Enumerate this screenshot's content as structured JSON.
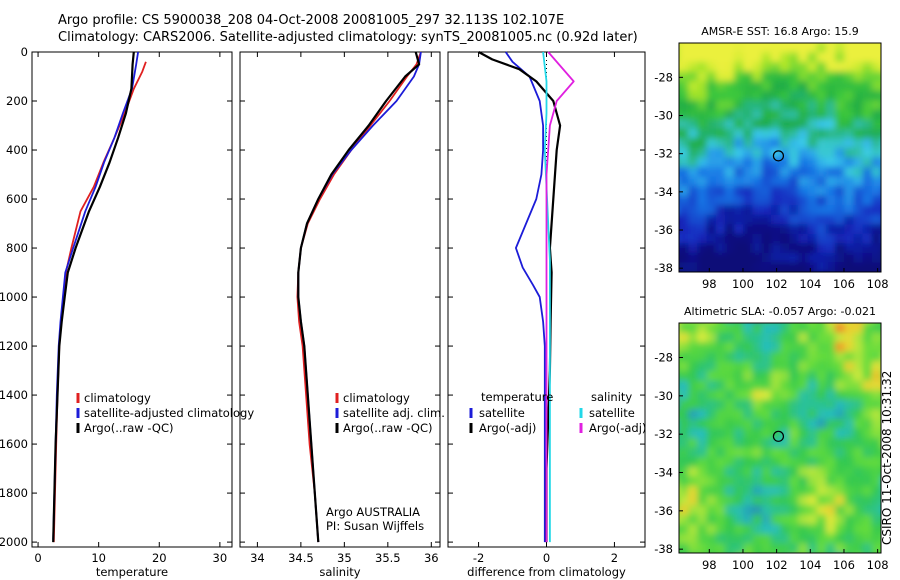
{
  "header": {
    "line1": "Argo profile: CS 5900038_208 04-Oct-2008 20081005_297 32.113S 102.107E",
    "line2": "Climatology: CARS2006. Satellite-adjusted climatology: synTS_20081005.nc (0.92d later)"
  },
  "side_stamp": "CSIRO 11-Oct-2008 10:31:32",
  "colors": {
    "climatology": "#e02020",
    "satellite": "#1c1cd8",
    "argo": "#000000",
    "satellite_salinity": "#22d8e8",
    "argo_adj_salinity": "#e020e0"
  },
  "chart_data": [
    {
      "type": "line",
      "id": "temperature",
      "xlabel": "temperature",
      "ylabel": "",
      "xlim": [
        -1,
        32
      ],
      "ylim": [
        2020,
        0
      ],
      "xticks": [
        0,
        10,
        20,
        30
      ],
      "yticks": [
        0,
        200,
        400,
        600,
        800,
        1000,
        1200,
        1400,
        1600,
        1800,
        2000
      ],
      "legend": [
        "climatology",
        "satellite-adjusted climatology",
        "Argo(..raw -QC)"
      ],
      "series": [
        {
          "name": "climatology",
          "color_key": "climatology",
          "x": [
            17.8,
            17.2,
            15.8,
            14.3,
            12.6,
            10.8,
            9.2,
            7.0,
            5.5,
            4.6,
            4.2,
            3.8,
            3.5,
            3.2,
            3.0,
            2.8,
            2.6
          ],
          "y": [
            40,
            80,
            150,
            250,
            350,
            450,
            550,
            650,
            800,
            900,
            1000,
            1100,
            1200,
            1400,
            1600,
            1800,
            2000
          ]
        },
        {
          "name": "satellite-adjusted climatology",
          "color_key": "satellite",
          "x": [
            16.5,
            16.2,
            15.5,
            14.0,
            12.6,
            10.9,
            9.5,
            7.8,
            5.8,
            4.5,
            4.1,
            3.7,
            3.4,
            3.1,
            2.9,
            2.7,
            2.5
          ],
          "y": [
            0,
            50,
            150,
            250,
            350,
            450,
            550,
            650,
            800,
            900,
            1000,
            1100,
            1200,
            1400,
            1600,
            1800,
            1990
          ]
        },
        {
          "name": "Argo(..raw -QC)",
          "color_key": "argo",
          "x": [
            15.8,
            15.6,
            15.4,
            14.5,
            13.2,
            11.8,
            10.2,
            8.4,
            6.2,
            4.9,
            4.4,
            3.9,
            3.5,
            3.2,
            2.9,
            2.7,
            2.5
          ],
          "y": [
            0,
            50,
            150,
            250,
            350,
            450,
            550,
            650,
            800,
            900,
            1000,
            1100,
            1200,
            1400,
            1600,
            1800,
            2000
          ]
        }
      ]
    },
    {
      "type": "line",
      "id": "salinity",
      "xlabel": "salinity",
      "ylabel": "",
      "xlim": [
        33.8,
        36.1
      ],
      "ylim": [
        2020,
        0
      ],
      "xticks": [
        34,
        34.5,
        35,
        35.5,
        36
      ],
      "yticks": [
        0,
        200,
        400,
        600,
        800,
        1000,
        1200,
        1400,
        1600,
        1800,
        2000
      ],
      "legend": [
        "climatology",
        "satellite adj. clim.",
        "Argo(..raw -QC)"
      ],
      "annotation": [
        "Argo AUSTRALIA",
        "PI: Susan Wijffels"
      ],
      "series": [
        {
          "name": "climatology",
          "color_key": "climatology",
          "x": [
            35.88,
            35.83,
            35.72,
            35.52,
            35.3,
            35.08,
            34.88,
            34.72,
            34.58,
            34.5,
            34.47,
            34.46,
            34.48,
            34.52,
            34.56,
            34.6,
            34.66,
            34.7
          ],
          "y": [
            0,
            50,
            100,
            200,
            300,
            400,
            500,
            600,
            700,
            800,
            900,
            1000,
            1100,
            1200,
            1400,
            1600,
            1800,
            2000
          ]
        },
        {
          "name": "satellite adj. clim.",
          "color_key": "satellite",
          "x": [
            35.88,
            35.86,
            35.8,
            35.6,
            35.33,
            35.08,
            34.86,
            34.7,
            34.57,
            34.5,
            34.47,
            34.47,
            34.5,
            34.54,
            34.58,
            34.62,
            34.66,
            34.7
          ],
          "y": [
            0,
            50,
            100,
            200,
            300,
            400,
            500,
            600,
            700,
            800,
            900,
            1000,
            1100,
            1200,
            1400,
            1600,
            1800,
            2000
          ]
        },
        {
          "name": "Argo(..raw -QC)",
          "color_key": "argo",
          "x": [
            35.82,
            35.86,
            35.7,
            35.48,
            35.28,
            35.05,
            34.85,
            34.7,
            34.57,
            34.5,
            34.47,
            34.47,
            34.5,
            34.54,
            34.58,
            34.62,
            34.66,
            34.7
          ],
          "y": [
            0,
            50,
            100,
            200,
            300,
            400,
            500,
            600,
            700,
            800,
            900,
            1000,
            1100,
            1200,
            1400,
            1600,
            1800,
            2000
          ]
        }
      ]
    },
    {
      "type": "line",
      "id": "difference",
      "xlabel": "difference from climatology",
      "ylabel": "",
      "xlim": [
        -2.9,
        2.9
      ],
      "ylim": [
        2020,
        0
      ],
      "xticks": [
        -2,
        0,
        2
      ],
      "yticks": [
        0,
        200,
        400,
        600,
        800,
        1000,
        1200,
        1400,
        1600,
        1800,
        2000
      ],
      "legend_groups": [
        {
          "heading": "temperature",
          "items": [
            "satellite",
            "Argo(-adj)"
          ]
        },
        {
          "heading": "salinity",
          "items": [
            "satellite",
            "Argo(-adj)"
          ]
        }
      ],
      "series": [
        {
          "name": "satellite",
          "group": "temperature",
          "color_key": "satellite",
          "x": [
            -1.2,
            -1.0,
            -0.5,
            -0.2,
            -0.1,
            -0.1,
            -0.15,
            -0.3,
            -0.6,
            -0.9,
            -0.7,
            -0.4,
            -0.2,
            -0.1,
            -0.05,
            -0.05,
            -0.05,
            -0.05
          ],
          "y": [
            0,
            40,
            100,
            200,
            300,
            400,
            500,
            600,
            700,
            800,
            880,
            950,
            1000,
            1100,
            1200,
            1400,
            1700,
            2000
          ]
        },
        {
          "name": "Argo(-adj)",
          "group": "temperature",
          "color_key": "argo",
          "x": [
            -2.0,
            -1.6,
            -0.8,
            -0.3,
            0.2,
            0.4,
            0.3,
            0.25,
            0.2,
            0.15,
            0.1,
            0.15,
            0.12,
            0.1,
            0.05,
            0.0,
            0.0
          ],
          "y": [
            0,
            30,
            70,
            120,
            200,
            300,
            400,
            500,
            600,
            700,
            800,
            900,
            1100,
            1300,
            1500,
            1700,
            2000
          ]
        },
        {
          "name": "satellite",
          "group": "salinity",
          "color_key": "satellite_salinity",
          "x": [
            -0.1,
            -0.05,
            0.0,
            0.0,
            -0.05,
            0.0,
            0.05,
            0.1,
            0.1,
            0.1,
            0.1,
            0.1,
            0.1
          ],
          "y": [
            0,
            60,
            120,
            250,
            400,
            550,
            700,
            850,
            1000,
            1200,
            1500,
            1800,
            2000
          ]
        },
        {
          "name": "Argo(-adj)",
          "group": "salinity",
          "color_key": "argo_adj_salinity",
          "x": [
            0.05,
            0.8,
            0.3,
            0.1,
            0.0,
            0.0,
            0.0,
            0.0,
            0.0,
            0.0
          ],
          "y": [
            0,
            120,
            200,
            300,
            500,
            800,
            1100,
            1400,
            1700,
            2000
          ]
        }
      ]
    },
    {
      "type": "heatmap",
      "id": "sst-map",
      "title": "AMSR-E SST: 16.8 Argo: 15.9",
      "xlim": [
        96.2,
        108.2
      ],
      "ylim": [
        -38.2,
        -26.2
      ],
      "xticks": [
        98,
        100,
        102,
        104,
        106,
        108
      ],
      "yticks": [
        -28,
        -30,
        -32,
        -34,
        -36,
        -38
      ],
      "marker": {
        "x": 102.107,
        "y": -32.113
      }
    },
    {
      "type": "heatmap",
      "id": "sla-map",
      "title": "Altimetric SLA: -0.057 Argo: -0.021",
      "xlim": [
        96.2,
        108.2
      ],
      "ylim": [
        -38.2,
        -26.2
      ],
      "xticks": [
        98,
        100,
        102,
        104,
        106,
        108
      ],
      "yticks": [
        -28,
        -30,
        -32,
        -34,
        -36,
        -38
      ],
      "marker": {
        "x": 102.107,
        "y": -32.113
      }
    }
  ]
}
